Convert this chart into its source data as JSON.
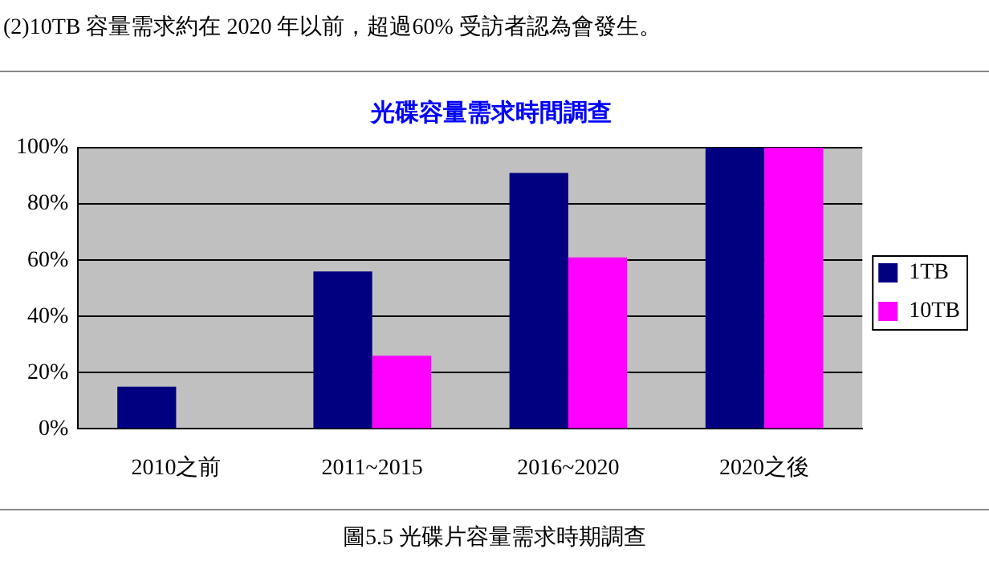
{
  "chart_data": {
    "type": "bar",
    "title": "光碟容量需求時間調查",
    "categories": [
      "2010之前",
      "2011~2015",
      "2016~2020",
      "2020之後"
    ],
    "series": [
      {
        "name": "1TB",
        "color": "#000080",
        "values": [
          15,
          56,
          91,
          100
        ]
      },
      {
        "name": "10TB",
        "color": "#ff00ff",
        "values": [
          0,
          26,
          61,
          100
        ]
      }
    ],
    "ylim": [
      0,
      100
    ],
    "yticks": [
      {
        "value": 0,
        "label": "0%"
      },
      {
        "value": 20,
        "label": "20%"
      },
      {
        "value": 40,
        "label": "40%"
      },
      {
        "value": 60,
        "label": "60%"
      },
      {
        "value": 80,
        "label": "80%"
      },
      {
        "value": 100,
        "label": "100%"
      }
    ],
    "grid": "y",
    "legend": "right",
    "annotations": [
      "(2)10TB 容量需求約在 2020 年以前，超過60% 受訪者認為會發生。",
      "圖5.5 光碟片容量需求時期調查"
    ]
  }
}
